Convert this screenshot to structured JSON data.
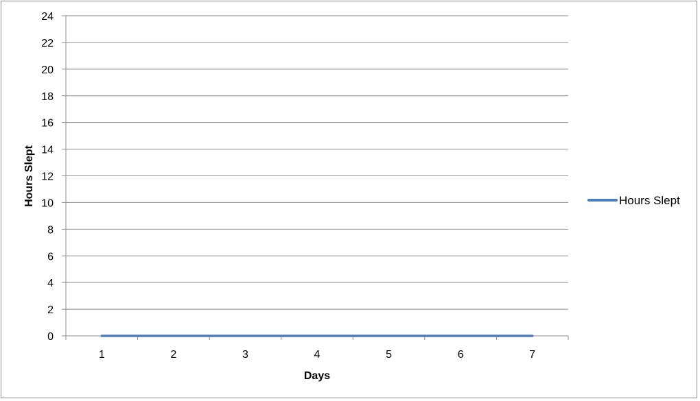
{
  "chart_data": {
    "type": "line",
    "title": "",
    "xlabel": "Days",
    "ylabel": "Hours Slept",
    "categories": [
      "1",
      "2",
      "3",
      "4",
      "5",
      "6",
      "7"
    ],
    "series": [
      {
        "name": "Hours Slept",
        "values": [
          0,
          0,
          0,
          0,
          0,
          0,
          0
        ],
        "color": "#4a7ebb"
      }
    ],
    "ylim": [
      0,
      24
    ],
    "yticks": [
      0,
      2,
      4,
      6,
      8,
      10,
      12,
      14,
      16,
      18,
      20,
      22,
      24
    ],
    "grid": true,
    "gridColor": "#8c8c8c",
    "legend": "right"
  }
}
